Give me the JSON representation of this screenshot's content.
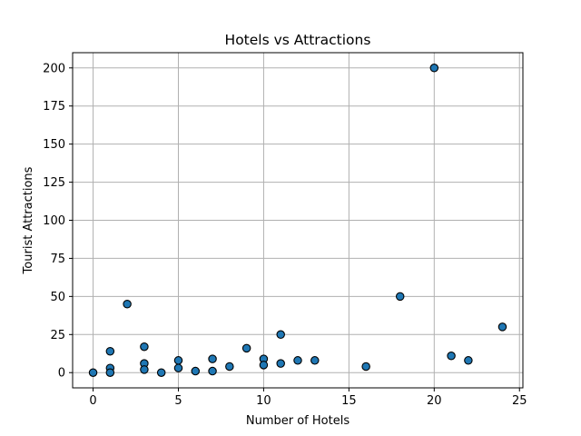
{
  "chart_data": {
    "type": "scatter",
    "title": "Hotels vs Attractions",
    "xlabel": "Number of Hotels",
    "ylabel": "Tourist Attractions",
    "xlim": [
      -1.2,
      25.2
    ],
    "ylim": [
      -10,
      210
    ],
    "xticks": [
      0,
      5,
      10,
      15,
      20,
      25
    ],
    "yticks": [
      0,
      25,
      50,
      75,
      100,
      125,
      150,
      175,
      200
    ],
    "grid": true,
    "marker_color": "#1f77b4",
    "marker_edge_color": "#000000",
    "points": [
      {
        "x": 0,
        "y": 0
      },
      {
        "x": 1,
        "y": 3
      },
      {
        "x": 1,
        "y": 0
      },
      {
        "x": 1,
        "y": 14
      },
      {
        "x": 2,
        "y": 45
      },
      {
        "x": 3,
        "y": 17
      },
      {
        "x": 3,
        "y": 6
      },
      {
        "x": 3,
        "y": 2
      },
      {
        "x": 4,
        "y": 0
      },
      {
        "x": 5,
        "y": 8
      },
      {
        "x": 5,
        "y": 3
      },
      {
        "x": 6,
        "y": 1
      },
      {
        "x": 7,
        "y": 9
      },
      {
        "x": 7,
        "y": 1
      },
      {
        "x": 8,
        "y": 4
      },
      {
        "x": 9,
        "y": 16
      },
      {
        "x": 10,
        "y": 9
      },
      {
        "x": 10,
        "y": 5
      },
      {
        "x": 11,
        "y": 25
      },
      {
        "x": 11,
        "y": 6
      },
      {
        "x": 12,
        "y": 8
      },
      {
        "x": 13,
        "y": 8
      },
      {
        "x": 16,
        "y": 4
      },
      {
        "x": 18,
        "y": 50
      },
      {
        "x": 20,
        "y": 200
      },
      {
        "x": 21,
        "y": 11
      },
      {
        "x": 22,
        "y": 8
      },
      {
        "x": 24,
        "y": 30
      }
    ]
  }
}
